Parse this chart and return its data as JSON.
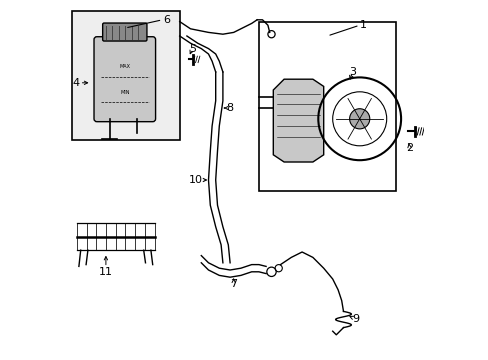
{
  "background_color": "#ffffff",
  "line_color": "#000000",
  "box_fill": "#eeeeee",
  "pump_fill": "#c8c8c8",
  "res_fill": "#c8c8c8",
  "cap_fill": "#888888",
  "fs": 8
}
